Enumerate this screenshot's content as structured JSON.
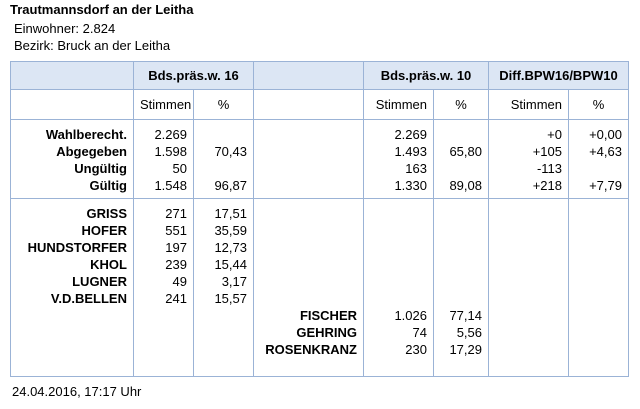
{
  "header": {
    "title": "Trautmannsdorf an der Leitha",
    "lines": [
      "Einwohner: 2.824",
      "Bezirk: Bruck an der Leitha"
    ]
  },
  "table": {
    "groups": [
      "Bds.präs.w. 16",
      "Bds.präs.w. 10",
      "Diff.BPW16/BPW10"
    ],
    "subheaders": [
      "Stimmen",
      "%",
      "Stimmen",
      "%",
      "Stimmen",
      "%"
    ],
    "summary_rows": [
      {
        "label": "Wahlberecht.",
        "votes16": "2.269",
        "votes10": "2.269",
        "diff_votes": "+0",
        "diff_pct": "+0,00"
      },
      {
        "label": "Abgegeben",
        "votes16": "1.598",
        "pct16": "70,43",
        "votes10": "1.493",
        "pct10": "65,80",
        "diff_votes": "+105",
        "diff_pct": "+4,63"
      },
      {
        "label": "Ungültig",
        "votes16": "50",
        "votes10": "163",
        "diff_votes": "-113"
      },
      {
        "label": "Gültig",
        "votes16": "1.548",
        "pct16": "96,87",
        "votes10": "1.330",
        "pct10": "89,08",
        "diff_votes": "+218",
        "diff_pct": "+7,79"
      }
    ],
    "candidates16": [
      {
        "name": "GRISS",
        "votes": "271",
        "pct": "17,51"
      },
      {
        "name": "HOFER",
        "votes": "551",
        "pct": "35,59"
      },
      {
        "name": "HUNDSTORFER",
        "votes": "197",
        "pct": "12,73"
      },
      {
        "name": "KHOL",
        "votes": "239",
        "pct": "15,44"
      },
      {
        "name": "LUGNER",
        "votes": "49",
        "pct": "3,17"
      },
      {
        "name": "V.D.BELLEN",
        "votes": "241",
        "pct": "15,57"
      }
    ],
    "candidates10": [
      {
        "name": "FISCHER",
        "votes": "1.026",
        "pct": "77,14"
      },
      {
        "name": "GEHRING",
        "votes": "74",
        "pct": "5,56"
      },
      {
        "name": "ROSENKRANZ",
        "votes": "230",
        "pct": "17,29"
      }
    ]
  },
  "footer": "24.04.2016, 17:17 Uhr"
}
